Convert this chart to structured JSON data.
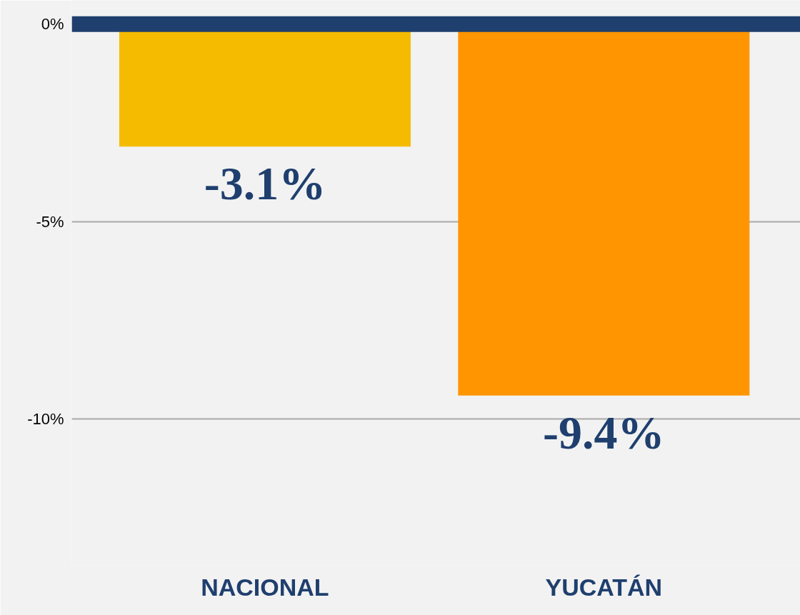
{
  "chart_data": {
    "type": "bar",
    "categories": [
      "NACIONAL",
      "YUCATÁN"
    ],
    "values": [
      -3.1,
      -9.4
    ],
    "colors": [
      "#f5bb00",
      "#ff9500"
    ],
    "value_labels": [
      "-3.1%",
      "-9.4%"
    ],
    "ylim": [
      -13.7,
      0.6
    ],
    "yticks": [
      {
        "value": 0,
        "label": "0%"
      },
      {
        "value": -5,
        "label": "-5%"
      },
      {
        "value": -10,
        "label": "-10%"
      }
    ],
    "grid": "y",
    "ref_lines": [
      {
        "axis": "y",
        "value": 0,
        "label": null,
        "color": "#1f3f6e"
      }
    ]
  }
}
